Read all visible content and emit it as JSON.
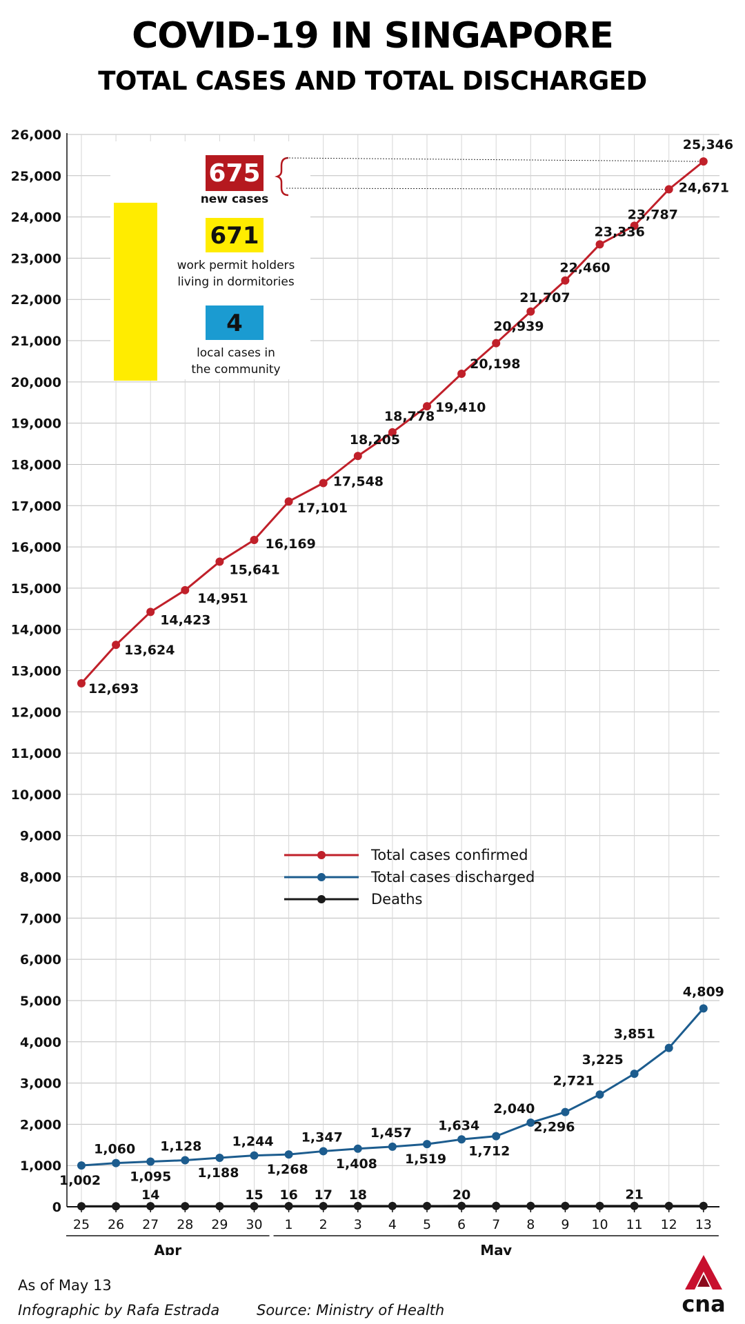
{
  "header": {
    "title": "COVID-19 IN SINGAPORE",
    "subtitle": "TOTAL CASES AND TOTAL DISCHARGED"
  },
  "callout": {
    "new_cases_value": "675",
    "new_cases_label": "new cases",
    "dorm_value": "671",
    "dorm_label_line1": "work permit holders",
    "dorm_label_line2": "living in dormitories",
    "community_value": "4",
    "community_label_line1": "local cases in",
    "community_label_line2": "the community",
    "colors": {
      "new_cases": "#b5191f",
      "dorm": "#ffec00",
      "community": "#1b9bd1"
    }
  },
  "chart_data": {
    "type": "line",
    "categories": [
      "25",
      "26",
      "27",
      "28",
      "29",
      "30",
      "1",
      "2",
      "3",
      "4",
      "5",
      "6",
      "7",
      "8",
      "9",
      "10",
      "11",
      "12",
      "13"
    ],
    "month_groups": [
      {
        "label": "Apr",
        "start": 0,
        "end": 5
      },
      {
        "label": "May",
        "start": 6,
        "end": 18
      }
    ],
    "ylim": [
      0,
      26000
    ],
    "yticks": [
      0,
      1000,
      2000,
      3000,
      4000,
      5000,
      6000,
      7000,
      8000,
      9000,
      10000,
      11000,
      12000,
      13000,
      14000,
      15000,
      16000,
      17000,
      18000,
      19000,
      20000,
      21000,
      22000,
      23000,
      24000,
      25000,
      26000
    ],
    "grid": true,
    "legend_position": "center",
    "series": [
      {
        "name": "Total cases confirmed",
        "color": "#c0202a",
        "values": [
          12693,
          13624,
          14423,
          14951,
          15641,
          16169,
          17101,
          17548,
          18205,
          18778,
          19410,
          20198,
          20939,
          21707,
          22460,
          23336,
          23787,
          24671,
          25346
        ],
        "labels": [
          "12,693",
          "13,624",
          "14,423",
          "14,951",
          "15,641",
          "16,169",
          "17,101",
          "17,548",
          "18,205",
          "18,778",
          "19,410",
          "20,198",
          "20,939",
          "21,707",
          "22,460",
          "23,336",
          "23,787",
          "24,671",
          "25,346"
        ]
      },
      {
        "name": "Total cases discharged",
        "color": "#1c5c8e",
        "values": [
          1002,
          1060,
          1095,
          1128,
          1188,
          1244,
          1268,
          1347,
          1408,
          1457,
          1519,
          1634,
          1712,
          2040,
          2296,
          2721,
          3225,
          3851,
          4809
        ],
        "labels": [
          "1,002",
          "1,060",
          "1,095",
          "1,128",
          "1,188",
          "1,244",
          "1,268",
          "1,347",
          "1,408",
          "1,457",
          "1,519",
          "1,634",
          "1,712",
          "2,040",
          "2,296",
          "2,721",
          "3,225",
          "3,851",
          "4,809"
        ]
      },
      {
        "name": "Deaths",
        "color": "#1a1a1a",
        "values": [
          12,
          12,
          14,
          14,
          14,
          15,
          16,
          17,
          18,
          18,
          18,
          20,
          20,
          20,
          20,
          20,
          21,
          21,
          21
        ],
        "labels": [
          "",
          "",
          "14",
          "",
          "",
          "15",
          "16",
          "17",
          "18",
          "",
          "",
          "20",
          "",
          "",
          "",
          "",
          "21",
          "",
          ""
        ]
      }
    ]
  },
  "footer": {
    "as_of": "As of May 13",
    "credit": "Infographic by Rafa Estrada",
    "source": "Source: Ministry of Health",
    "logo_text": "cna"
  }
}
